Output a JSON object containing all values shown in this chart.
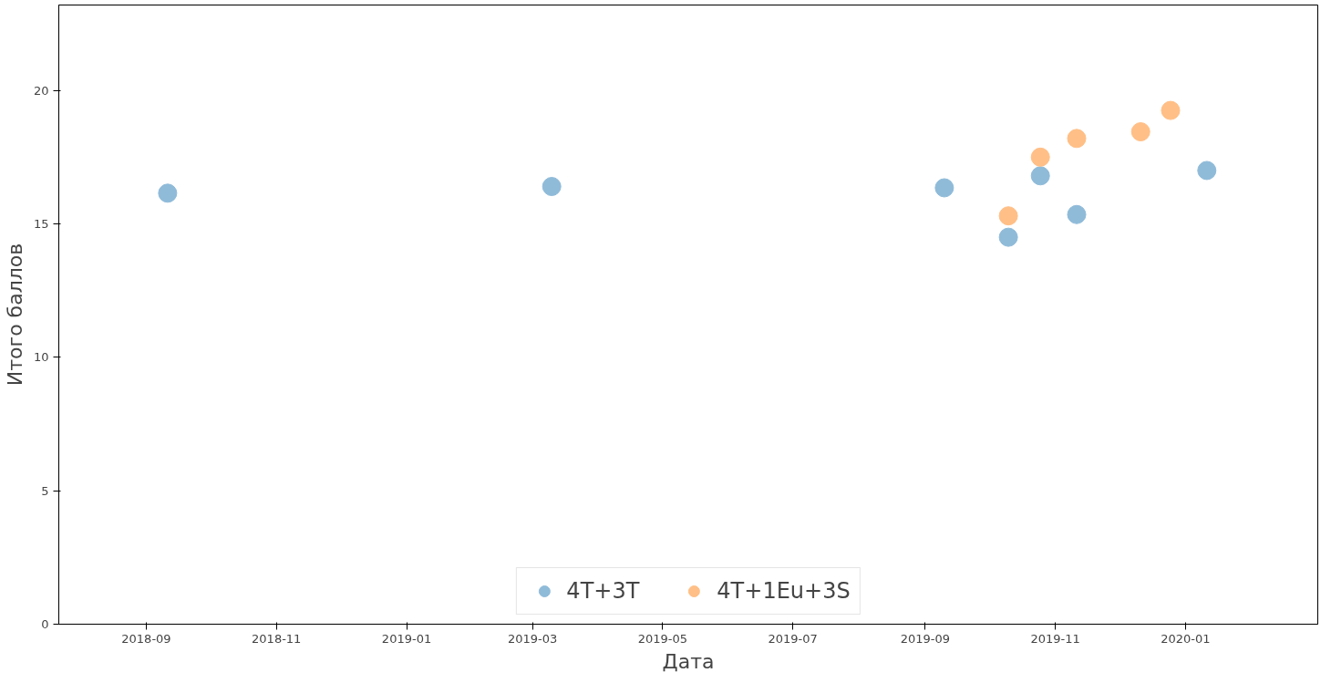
{
  "chart_data": {
    "type": "scatter",
    "xlabel": "Дата",
    "ylabel": "Итого баллов",
    "xlim": [
      "2018-07-22",
      "2020-03-03"
    ],
    "ylim": [
      0,
      23.2
    ],
    "xticks": [
      "2018-09",
      "2018-11",
      "2019-01",
      "2019-03",
      "2019-05",
      "2019-07",
      "2019-09",
      "2019-11",
      "2020-01"
    ],
    "yticks": [
      0,
      5,
      10,
      15,
      20
    ],
    "grid": false,
    "legend": "bottom",
    "marker": "circle",
    "series": [
      {
        "name": "4T+3T",
        "color": "#8fbbd9",
        "x": [
          "2018-09-11",
          "2019-03-10",
          "2019-09-10",
          "2019-10-10",
          "2019-10-25",
          "2019-11-11",
          "2020-01-11"
        ],
        "values": [
          16.15,
          16.4,
          16.35,
          14.5,
          16.8,
          15.35,
          17.0
        ]
      },
      {
        "name": "4T+1Eu+3S",
        "color": "#ffbf86",
        "x": [
          "2019-10-10",
          "2019-10-25",
          "2019-11-11",
          "2019-12-11",
          "2019-12-25"
        ],
        "values": [
          15.3,
          17.5,
          18.2,
          18.45,
          19.25
        ]
      }
    ]
  }
}
